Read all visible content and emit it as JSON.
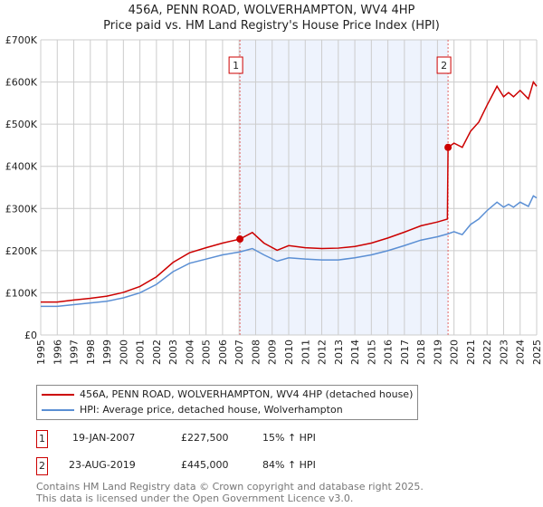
{
  "chart_data": {
    "type": "line",
    "title": "456A, PENN ROAD, WOLVERHAMPTON, WV4 4HP",
    "subtitle": "Price paid vs. HM Land Registry's House Price Index (HPI)",
    "xlim": [
      1995,
      2025
    ],
    "ylim": [
      0,
      700000
    ],
    "yticks": [
      {
        "v": 0,
        "l": "£0"
      },
      {
        "v": 100000,
        "l": "£100K"
      },
      {
        "v": 200000,
        "l": "£200K"
      },
      {
        "v": 300000,
        "l": "£300K"
      },
      {
        "v": 400000,
        "l": "£400K"
      },
      {
        "v": 500000,
        "l": "£500K"
      },
      {
        "v": 600000,
        "l": "£600K"
      },
      {
        "v": 700000,
        "l": "£700K"
      }
    ],
    "xticks": [
      "1995",
      "1996",
      "1997",
      "1998",
      "1999",
      "2000",
      "2001",
      "2002",
      "2003",
      "2004",
      "2005",
      "2006",
      "2007",
      "2008",
      "2009",
      "2010",
      "2011",
      "2012",
      "2013",
      "2014",
      "2015",
      "2016",
      "2017",
      "2018",
      "2019",
      "2020",
      "2021",
      "2022",
      "2023",
      "2024",
      "2025"
    ],
    "shaded_range": [
      2007.05,
      2019.64
    ],
    "series": [
      {
        "name": "456A, PENN ROAD, WOLVERHAMPTON, WV4 4HP (detached house)",
        "color": "#cc0000",
        "x": [
          1995,
          1996,
          1997,
          1998,
          1999,
          2000,
          2001,
          2002,
          2003,
          2004,
          2005,
          2006,
          2007.05,
          2007.8,
          2008.5,
          2009.3,
          2010,
          2011,
          2012,
          2013,
          2014,
          2015,
          2016,
          2017,
          2018,
          2019,
          2019.6,
          2019.64,
          2020,
          2020.5,
          2021,
          2021.5,
          2022,
          2022.6,
          2023,
          2023.3,
          2023.6,
          2024,
          2024.5,
          2024.8,
          2025
        ],
        "y": [
          78000,
          78000,
          83000,
          87000,
          92000,
          101000,
          115000,
          138000,
          172000,
          195000,
          207000,
          218000,
          227500,
          243000,
          218000,
          201000,
          212000,
          207000,
          205000,
          206000,
          210000,
          218000,
          230000,
          244000,
          259000,
          268000,
          275000,
          445000,
          455000,
          445000,
          483000,
          505000,
          545000,
          590000,
          565000,
          575000,
          565000,
          580000,
          560000,
          600000,
          590000
        ]
      },
      {
        "name": "HPI: Average price, detached house, Wolverhampton",
        "color": "#5b8fd4",
        "x": [
          1995,
          1996,
          1997,
          1998,
          1999,
          2000,
          2001,
          2002,
          2003,
          2004,
          2005,
          2006,
          2007.05,
          2007.8,
          2008.5,
          2009.3,
          2010,
          2011,
          2012,
          2013,
          2014,
          2015,
          2016,
          2017,
          2018,
          2019,
          2019.64,
          2020,
          2020.5,
          2021,
          2021.5,
          2022,
          2022.6,
          2023,
          2023.3,
          2023.6,
          2024,
          2024.5,
          2024.8,
          2025
        ],
        "y": [
          68000,
          68000,
          72000,
          76000,
          80000,
          88000,
          100000,
          120000,
          150000,
          170000,
          180000,
          190000,
          197000,
          205000,
          190000,
          175000,
          183000,
          180000,
          178000,
          178000,
          183000,
          190000,
          200000,
          212000,
          225000,
          233000,
          240000,
          245000,
          238000,
          262000,
          275000,
          295000,
          315000,
          303000,
          310000,
          303000,
          315000,
          305000,
          330000,
          325000
        ]
      }
    ],
    "markers": [
      {
        "label": "1",
        "x": 2007.05,
        "y": 227500
      },
      {
        "label": "2",
        "x": 2019.64,
        "y": 445000
      }
    ]
  },
  "legend": [
    "456A, PENN ROAD, WOLVERHAMPTON, WV4 4HP (detached house)",
    "HPI: Average price, detached house, Wolverhampton"
  ],
  "transactions": [
    {
      "n": "1",
      "date": "19-JAN-2007",
      "price": "£227,500",
      "hpi": "15% ↑ HPI"
    },
    {
      "n": "2",
      "date": "23-AUG-2019",
      "price": "£445,000",
      "hpi": "84% ↑ HPI"
    }
  ],
  "footer": [
    "Contains HM Land Registry data © Crown copyright and database right 2025.",
    "This data is licensed under the Open Government Licence v3.0."
  ]
}
